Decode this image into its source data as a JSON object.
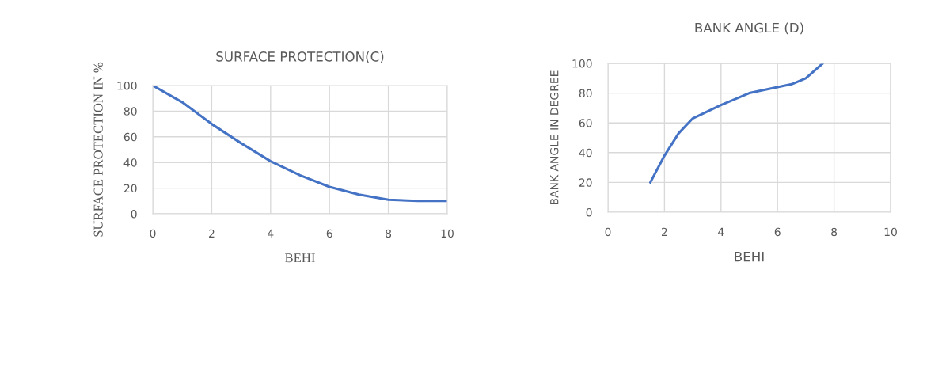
{
  "chart_data": [
    {
      "type": "line",
      "title": "SURFACE PROTECTION(C)",
      "xlabel": "BEHI",
      "ylabel": "SURFACE PROTECTION IN %",
      "series": [
        {
          "color": "#4472c4",
          "x": [
            0,
            1,
            2,
            3,
            4,
            5,
            6,
            7,
            8,
            9,
            10
          ],
          "values": [
            100,
            87,
            70,
            55,
            41,
            30,
            21,
            15,
            11,
            10,
            10
          ]
        }
      ],
      "xlim": [
        0,
        10
      ],
      "xticks": [
        0,
        2,
        4,
        6,
        8,
        10
      ],
      "ylim": [
        0,
        100
      ],
      "yticks": [
        0,
        20,
        40,
        60,
        80,
        100
      ],
      "grid": true
    },
    {
      "type": "line",
      "title": "BANK ANGLE (D)",
      "xlabel": "BEHI",
      "ylabel": "BANK ANGLE IN DEGREE",
      "series": [
        {
          "color": "#4472c4",
          "x": [
            1.5,
            2,
            2.5,
            3,
            4,
            5,
            6,
            6.5,
            7,
            7.6
          ],
          "values": [
            20,
            38,
            53,
            63,
            72,
            80,
            84,
            86,
            90,
            100
          ]
        }
      ],
      "xlim": [
        0,
        10
      ],
      "xticks": [
        0,
        2,
        4,
        6,
        8,
        10
      ],
      "ylim": [
        0,
        100
      ],
      "yticks": [
        0,
        20,
        40,
        60,
        80,
        100
      ],
      "grid": true
    }
  ]
}
